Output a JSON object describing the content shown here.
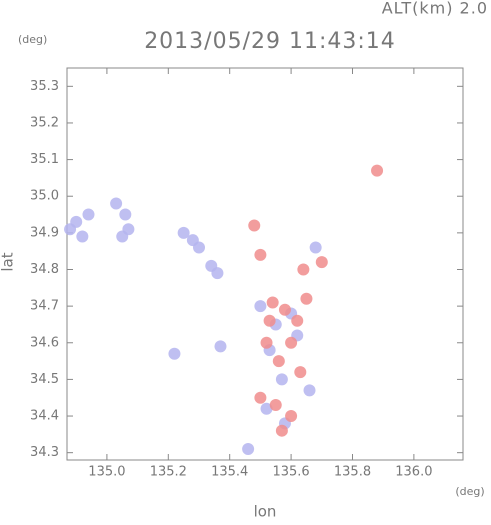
{
  "chart_data": {
    "type": "scatter",
    "corner_label": "ALT(km) 2.0",
    "title": "2013/05/29 11:43:14",
    "y_unit": "(deg)",
    "x_unit": "(deg)",
    "ylabel": "lat",
    "xlabel": "lon",
    "xlim": [
      134.87,
      136.16
    ],
    "ylim": [
      34.28,
      35.35
    ],
    "xticks": [
      {
        "value": 135.0,
        "label": "135.0"
      },
      {
        "value": 135.2,
        "label": "135.2"
      },
      {
        "value": 135.4,
        "label": "135.4"
      },
      {
        "value": 135.6,
        "label": "135.6"
      },
      {
        "value": 135.8,
        "label": "135.8"
      },
      {
        "value": 136.0,
        "label": "136.0"
      }
    ],
    "yticks": [
      {
        "value": 34.3,
        "label": "34.3"
      },
      34.4,
      34.5,
      34.6,
      34.7,
      34.8,
      34.9,
      {
        "value": 35.0,
        "label": "35.0"
      },
      35.1,
      35.2,
      35.3
    ],
    "series": [
      {
        "color": "#b4b4ee",
        "x": [
          134.88,
          134.9,
          134.92,
          134.94,
          135.03,
          135.06,
          135.07,
          135.05,
          135.25,
          135.28,
          135.3,
          135.34,
          135.36,
          135.22,
          135.37,
          135.5,
          135.55,
          135.6,
          135.53,
          135.62,
          135.57,
          135.66,
          135.52,
          135.58,
          135.46,
          135.68
        ],
        "y": [
          34.91,
          34.93,
          34.89,
          34.95,
          34.98,
          34.95,
          34.91,
          34.89,
          34.9,
          34.88,
          34.86,
          34.81,
          34.79,
          34.57,
          34.59,
          34.7,
          34.65,
          34.68,
          34.58,
          34.62,
          34.5,
          34.47,
          34.42,
          34.38,
          34.31,
          34.86
        ],
        "r": 0
      },
      {
        "color": "#f08c8c",
        "x": [
          135.88,
          135.48,
          135.5,
          135.54,
          135.58,
          135.62,
          135.65,
          135.52,
          135.6,
          135.56,
          135.63,
          135.5,
          135.55,
          135.6,
          135.57,
          135.7,
          135.64,
          135.53
        ],
        "y": [
          35.07,
          34.92,
          34.84,
          34.71,
          34.69,
          34.66,
          34.72,
          34.6,
          34.6,
          34.55,
          34.52,
          34.45,
          34.43,
          34.4,
          34.36,
          34.82,
          34.8,
          34.66
        ]
      }
    ]
  }
}
